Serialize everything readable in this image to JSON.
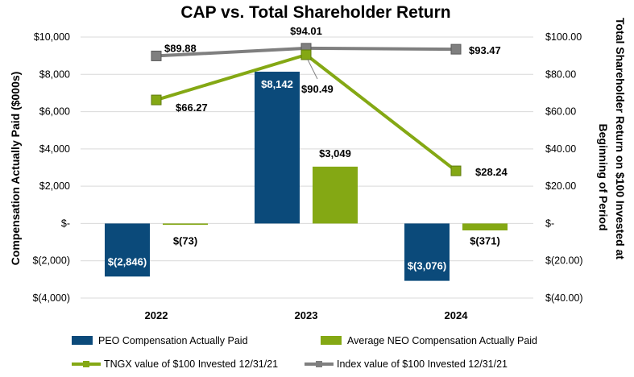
{
  "chart_data": {
    "type": "bar",
    "title": "CAP vs. Total Shareholder Return",
    "categories": [
      "2022",
      "2023",
      "2024"
    ],
    "ylabel": "Compensation Actually Paid ($000s)",
    "y2label_line1": "Total Shareholder Return on $100 Invested at",
    "y2label_line2": "Beginning of Period",
    "ylim": [
      -4000,
      10000
    ],
    "y2lim": [
      -40,
      100
    ],
    "y_ticks": [
      10000,
      8000,
      6000,
      4000,
      2000,
      0,
      -2000,
      -4000
    ],
    "y_tick_labels": [
      "$10,000",
      "$8,000",
      "$6,000",
      "$4,000",
      "$2,000",
      "$-",
      "$(2,000)",
      "$(4,000)"
    ],
    "y2_ticks": [
      100,
      80,
      60,
      40,
      20,
      0,
      -20,
      -40
    ],
    "y2_tick_labels": [
      "$100.00",
      "$80.00",
      "$60.00",
      "$40.00",
      "$20.00",
      "$-",
      "$(20.00)",
      "$(40.00)"
    ],
    "grid": true,
    "legend_position": "bottom",
    "bar_series": [
      {
        "name": "PEO Compensation Actually Paid",
        "color": "#0b4a7a",
        "label_color": "#ffffff",
        "values": [
          -2846,
          8142,
          -3076
        ],
        "labels": [
          "$(2,846)",
          "$8,142",
          "$(3,076)"
        ]
      },
      {
        "name": "Average NEO Compensation Actually Paid",
        "color": "#84a814",
        "label_color": "#000000",
        "values": [
          -73,
          3049,
          -371
        ],
        "labels": [
          "$(73)",
          "$3,049",
          "$(371)"
        ]
      }
    ],
    "line_series": [
      {
        "name": "TNGX value of $100 Invested 12/31/21",
        "color": "#84a814",
        "axis": "secondary",
        "values": [
          66.27,
          90.49,
          28.24
        ],
        "labels": [
          "$66.27",
          "$90.49",
          "$28.24"
        ]
      },
      {
        "name": "Index value of $100 Invested 12/31/21",
        "color": "#7f7f7f",
        "axis": "secondary",
        "values": [
          89.88,
          94.01,
          93.47
        ],
        "labels": [
          "$89.88",
          "$94.01",
          "$93.47"
        ]
      }
    ]
  }
}
